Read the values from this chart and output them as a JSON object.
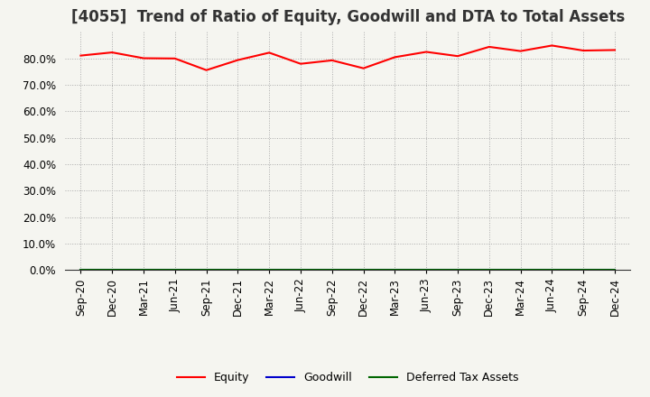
{
  "title": "[4055]  Trend of Ratio of Equity, Goodwill and DTA to Total Assets",
  "x_labels": [
    "Sep-20",
    "Dec-20",
    "Mar-21",
    "Jun-21",
    "Sep-21",
    "Dec-21",
    "Mar-22",
    "Jun-22",
    "Sep-22",
    "Dec-22",
    "Mar-23",
    "Jun-23",
    "Sep-23",
    "Dec-23",
    "Mar-24",
    "Jun-24",
    "Sep-24",
    "Dec-24"
  ],
  "equity": [
    0.81,
    0.822,
    0.8,
    0.799,
    0.755,
    0.793,
    0.821,
    0.779,
    0.792,
    0.762,
    0.804,
    0.824,
    0.808,
    0.843,
    0.827,
    0.848,
    0.829,
    0.831
  ],
  "goodwill": [
    0.0,
    0.0,
    0.0,
    0.0,
    0.0,
    0.0,
    0.0,
    0.0,
    0.0,
    0.0,
    0.0,
    0.0,
    0.0,
    0.0,
    0.0,
    0.0,
    0.0,
    0.0
  ],
  "dta": [
    0.0,
    0.0,
    0.0,
    0.0,
    0.0,
    0.0,
    0.0,
    0.0,
    0.0,
    0.0,
    0.0,
    0.0,
    0.0,
    0.0,
    0.0,
    0.0,
    0.0,
    0.0
  ],
  "equity_color": "#ff0000",
  "goodwill_color": "#0000cc",
  "dta_color": "#006600",
  "ylim": [
    0.0,
    0.9
  ],
  "yticks": [
    0.0,
    0.1,
    0.2,
    0.3,
    0.4,
    0.5,
    0.6,
    0.7,
    0.8
  ],
  "background_color": "#f5f5f0",
  "plot_bg_color": "#f5f5f0",
  "grid_color": "#aaaaaa",
  "title_fontsize": 12,
  "tick_fontsize": 8.5,
  "legend_labels": [
    "Equity",
    "Goodwill",
    "Deferred Tax Assets"
  ]
}
